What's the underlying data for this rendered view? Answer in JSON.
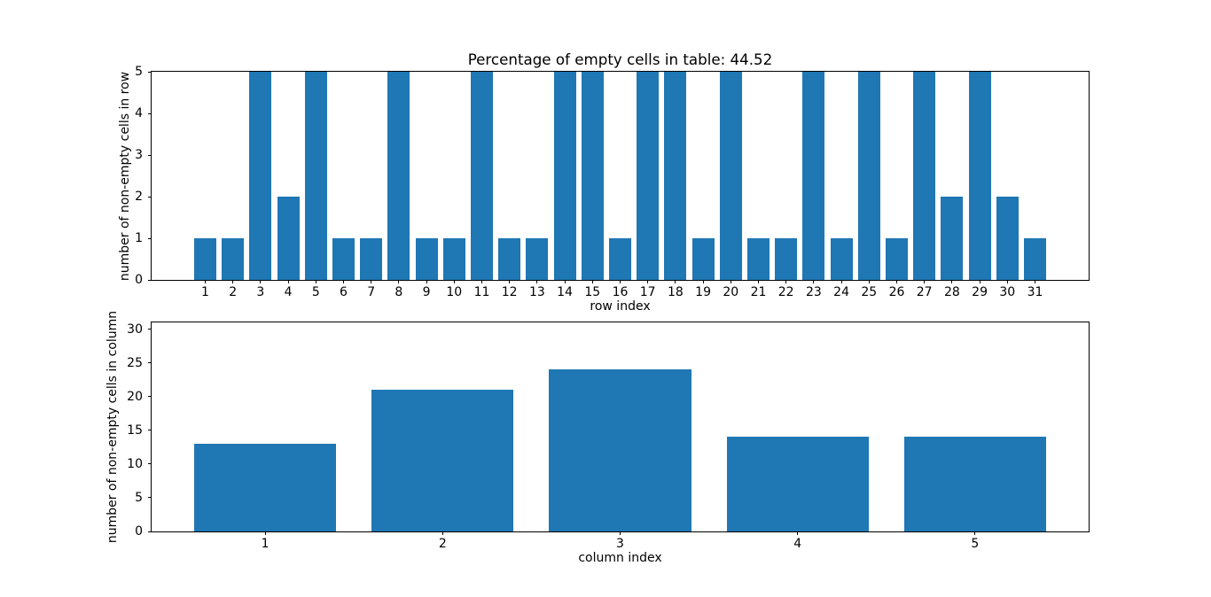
{
  "figure": {
    "background_color": "#ffffff",
    "bar_color": "#1f77b4",
    "spine_color": "#000000",
    "text_color": "#000000"
  },
  "chart_data": [
    {
      "type": "bar",
      "title": "Percentage of empty cells in table: 44.52",
      "xlabel": "row index",
      "ylabel": "number of non-empty cells in row",
      "categories": [
        1,
        2,
        3,
        4,
        5,
        6,
        7,
        8,
        9,
        10,
        11,
        12,
        13,
        14,
        15,
        16,
        17,
        18,
        19,
        20,
        21,
        22,
        23,
        24,
        25,
        26,
        27,
        28,
        29,
        30,
        31
      ],
      "values": [
        1,
        1,
        5,
        2,
        5,
        1,
        1,
        5,
        1,
        1,
        5,
        1,
        1,
        5,
        5,
        1,
        5,
        5,
        1,
        5,
        1,
        1,
        5,
        1,
        5,
        1,
        5,
        2,
        5,
        2,
        1
      ],
      "xlim": [
        -0.94,
        32.94
      ],
      "ylim": [
        0,
        5
      ],
      "yticks": [
        0,
        1,
        2,
        3,
        4,
        5
      ],
      "bar_width": 0.8,
      "grid": false,
      "legend": "none"
    },
    {
      "type": "bar",
      "title": "",
      "xlabel": "column index",
      "ylabel": "number of non-empty cells in column",
      "categories": [
        1,
        2,
        3,
        4,
        5
      ],
      "values": [
        13,
        21,
        24,
        14,
        14
      ],
      "xlim": [
        0.36,
        5.64
      ],
      "ylim": [
        0,
        31
      ],
      "yticks": [
        0,
        5,
        10,
        15,
        20,
        25,
        30
      ],
      "bar_width": 0.8,
      "grid": false,
      "legend": "none"
    }
  ]
}
